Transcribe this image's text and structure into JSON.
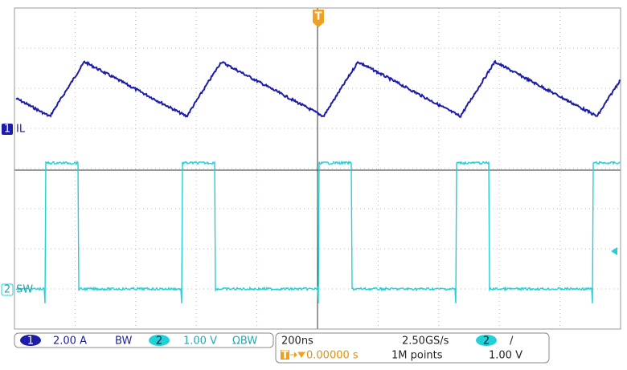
{
  "trigger_marker": "T",
  "channels": [
    {
      "number": "1",
      "label": "IL",
      "scale": "2.00 A",
      "bandwidth": "BW"
    },
    {
      "number": "2",
      "label": "SW",
      "scale": "1.00 V",
      "bandwidth": "ΩBW"
    }
  ],
  "timebase": {
    "scale": "200ns",
    "sample_rate": "2.50GS/s",
    "trigger_position": "0.00000 s",
    "record_length": "1M points"
  },
  "trigger": {
    "source": "2",
    "slope": "/",
    "level": "1.00 V"
  }
}
